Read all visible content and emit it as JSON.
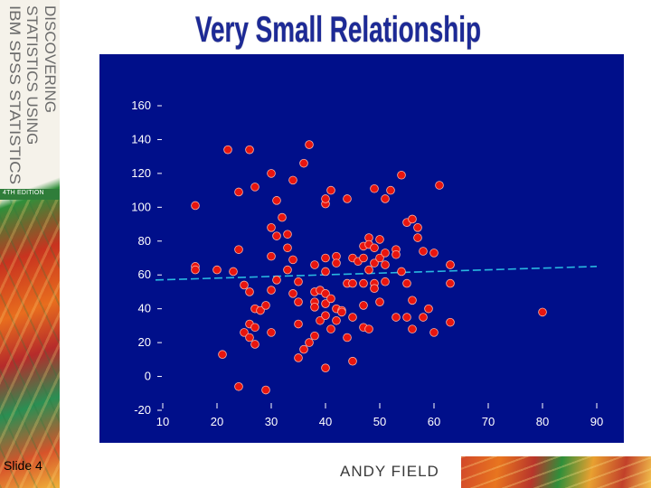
{
  "title": "Very Small Relationship",
  "side": {
    "title_lines": [
      "DISCOVERING",
      "STATISTICS USING",
      "IBM SPSS STATISTICS"
    ],
    "edition": "4TH EDITION"
  },
  "slide_label": "Slide 4",
  "author": "ANDY FIELD",
  "colors": {
    "plot_background": "#000f8a",
    "point_fill": "#e8150f",
    "trend_line": "#29b8e0",
    "tick_text": "#ffffff",
    "title_fill": "#1d2a96"
  },
  "chart_data": {
    "type": "scatter",
    "title": "",
    "xlabel": "",
    "ylabel": "",
    "xlim": [
      10,
      90
    ],
    "ylim": [
      -20,
      160
    ],
    "xticks": [
      10,
      20,
      30,
      40,
      50,
      60,
      70,
      80,
      90
    ],
    "yticks": [
      -20,
      0,
      20,
      40,
      60,
      80,
      100,
      120,
      140,
      160
    ],
    "grid": false,
    "trend_line": {
      "x": [
        10,
        90
      ],
      "y": [
        57,
        65
      ]
    },
    "points": [
      [
        16,
        101
      ],
      [
        16,
        65
      ],
      [
        16,
        63
      ],
      [
        20,
        63
      ],
      [
        21,
        13
      ],
      [
        22,
        134
      ],
      [
        23,
        62
      ],
      [
        24,
        109
      ],
      [
        24,
        75
      ],
      [
        24,
        -6
      ],
      [
        25,
        54
      ],
      [
        25,
        26
      ],
      [
        26,
        134
      ],
      [
        26,
        50
      ],
      [
        26,
        31
      ],
      [
        26,
        23
      ],
      [
        27,
        112
      ],
      [
        27,
        40
      ],
      [
        27,
        29
      ],
      [
        27,
        19
      ],
      [
        28,
        39
      ],
      [
        29,
        42
      ],
      [
        29,
        -8
      ],
      [
        30,
        120
      ],
      [
        30,
        88
      ],
      [
        30,
        71
      ],
      [
        30,
        51
      ],
      [
        30,
        26
      ],
      [
        31,
        104
      ],
      [
        31,
        83
      ],
      [
        31,
        57
      ],
      [
        32,
        94
      ],
      [
        33,
        84
      ],
      [
        33,
        76
      ],
      [
        33,
        63
      ],
      [
        34,
        116
      ],
      [
        34,
        69
      ],
      [
        34,
        49
      ],
      [
        35,
        56
      ],
      [
        35,
        44
      ],
      [
        35,
        31
      ],
      [
        35,
        11
      ],
      [
        36,
        126
      ],
      [
        36,
        16
      ],
      [
        37,
        137
      ],
      [
        37,
        20
      ],
      [
        38,
        66
      ],
      [
        38,
        50
      ],
      [
        38,
        44
      ],
      [
        38,
        41
      ],
      [
        38,
        24
      ],
      [
        39,
        51
      ],
      [
        39,
        33
      ],
      [
        40,
        102
      ],
      [
        40,
        105
      ],
      [
        40,
        49
      ],
      [
        40,
        43
      ],
      [
        40,
        36
      ],
      [
        40,
        5
      ],
      [
        40,
        62
      ],
      [
        40,
        70
      ],
      [
        41,
        110
      ],
      [
        41,
        46
      ],
      [
        41,
        28
      ],
      [
        42,
        40
      ],
      [
        42,
        33
      ],
      [
        42,
        71
      ],
      [
        42,
        67
      ],
      [
        43,
        39
      ],
      [
        43,
        38
      ],
      [
        44,
        55
      ],
      [
        44,
        105
      ],
      [
        44,
        23
      ],
      [
        45,
        55
      ],
      [
        45,
        70
      ],
      [
        45,
        35
      ],
      [
        45,
        9
      ],
      [
        46,
        68
      ],
      [
        47,
        77
      ],
      [
        47,
        70
      ],
      [
        47,
        55
      ],
      [
        47,
        42
      ],
      [
        47,
        29
      ],
      [
        48,
        82
      ],
      [
        48,
        78
      ],
      [
        48,
        63
      ],
      [
        48,
        28
      ],
      [
        49,
        111
      ],
      [
        49,
        76
      ],
      [
        49,
        67
      ],
      [
        49,
        55
      ],
      [
        49,
        52
      ],
      [
        50,
        81
      ],
      [
        50,
        70
      ],
      [
        50,
        44
      ],
      [
        51,
        105
      ],
      [
        51,
        73
      ],
      [
        51,
        66
      ],
      [
        51,
        56
      ],
      [
        52,
        110
      ],
      [
        53,
        75
      ],
      [
        53,
        72
      ],
      [
        53,
        35
      ],
      [
        54,
        119
      ],
      [
        54,
        62
      ],
      [
        55,
        91
      ],
      [
        55,
        55
      ],
      [
        55,
        35
      ],
      [
        56,
        93
      ],
      [
        56,
        45
      ],
      [
        56,
        28
      ],
      [
        57,
        88
      ],
      [
        57,
        82
      ],
      [
        58,
        74
      ],
      [
        58,
        35
      ],
      [
        59,
        40
      ],
      [
        60,
        73
      ],
      [
        60,
        26
      ],
      [
        61,
        113
      ],
      [
        63,
        66
      ],
      [
        63,
        66
      ],
      [
        63,
        55
      ],
      [
        63,
        32
      ],
      [
        80,
        38
      ]
    ]
  }
}
